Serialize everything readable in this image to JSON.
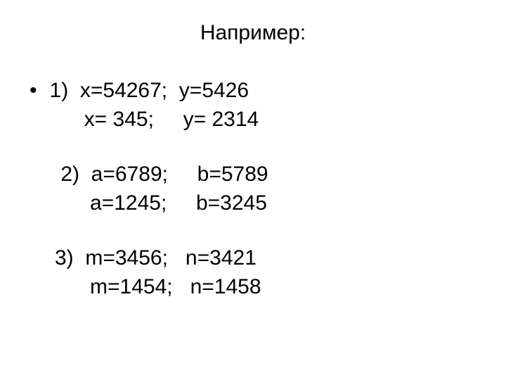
{
  "title": "Например:",
  "group1": {
    "line1": "1)  x=54267;  y=5426",
    "line2": "     x= 345;     y= 2314"
  },
  "group2": {
    "line1": " 2)  a=6789;     b=5789",
    "line2": "      a=1245;     b=3245"
  },
  "group3": {
    "line1": "3)  m=3456;   n=3421",
    "line2": "      m=1454;   n=1458"
  },
  "colors": {
    "background": "#ffffff",
    "text": "#000000"
  },
  "typography": {
    "title_fontsize": 30,
    "body_fontsize": 30,
    "font_family": "Arial"
  }
}
